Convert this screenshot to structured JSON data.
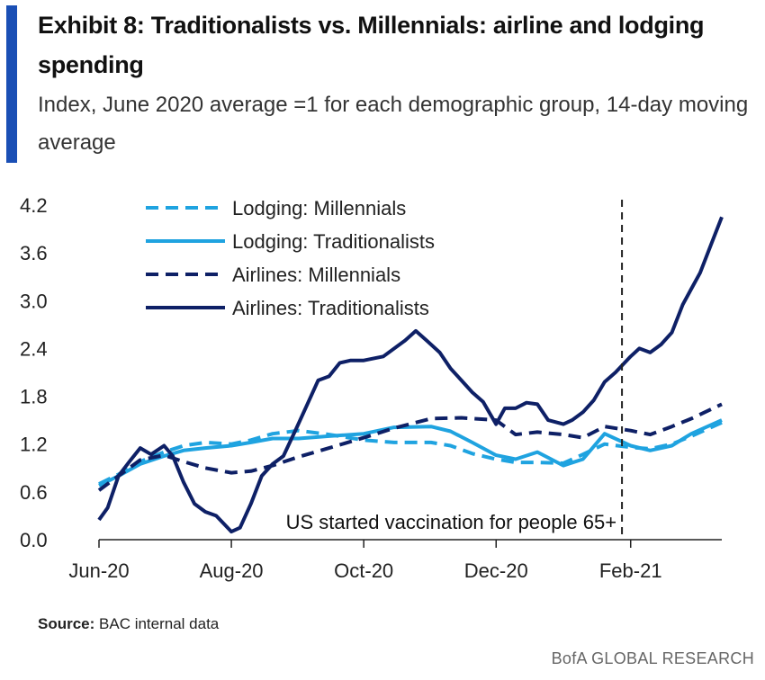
{
  "header": {
    "title": "Exhibit 8: Traditionalists vs. Millennials: airline and lodging spending",
    "subtitle": "Index, June 2020 average =1 for each demographic group, 14-day moving average"
  },
  "footer": {
    "source_label": "Source:",
    "source_text": " BAC internal data",
    "brand": "BofA GLOBAL RESEARCH"
  },
  "colors": {
    "light_blue": "#1fa3e0",
    "dark_navy": "#0e2066",
    "vline": "#222222"
  },
  "chart_data": {
    "type": "line",
    "x_tick_labels": [
      "Jun-20",
      "Aug-20",
      "Oct-20",
      "Dec-20",
      "Feb-21"
    ],
    "x_tick_dates": [
      "2020-06-01",
      "2020-08-01",
      "2020-10-01",
      "2020-12-01",
      "2021-02-01"
    ],
    "xlim": [
      "2020-06-01",
      "2021-03-15"
    ],
    "ylim": [
      0,
      4.2
    ],
    "y_ticks": [
      0.0,
      0.6,
      1.2,
      1.8,
      2.4,
      3.0,
      3.6,
      4.2
    ],
    "y_tick_labels": [
      "0.0",
      "0.6",
      "1.2",
      "1.8",
      "2.4",
      "3.0",
      "3.6",
      "4.2"
    ],
    "grid": false,
    "legend_position": "top-left",
    "annotation": {
      "text": "US started vaccination for people 65+",
      "date": "2021-01-28"
    },
    "series": [
      {
        "name": "Lodging: Millennials",
        "color": "#1fa3e0",
        "style": "dashed",
        "points": [
          [
            "2020-06-01",
            0.7
          ],
          [
            "2020-06-10",
            0.82
          ],
          [
            "2020-06-20",
            0.98
          ],
          [
            "2020-07-01",
            1.1
          ],
          [
            "2020-07-10",
            1.18
          ],
          [
            "2020-07-20",
            1.22
          ],
          [
            "2020-08-01",
            1.2
          ],
          [
            "2020-08-10",
            1.25
          ],
          [
            "2020-08-20",
            1.33
          ],
          [
            "2020-09-01",
            1.37
          ],
          [
            "2020-09-15",
            1.32
          ],
          [
            "2020-10-01",
            1.25
          ],
          [
            "2020-10-15",
            1.22
          ],
          [
            "2020-11-01",
            1.22
          ],
          [
            "2020-11-10",
            1.18
          ],
          [
            "2020-11-20",
            1.08
          ],
          [
            "2020-12-01",
            1.01
          ],
          [
            "2020-12-10",
            0.97
          ],
          [
            "2020-12-20",
            0.97
          ],
          [
            "2021-01-01",
            0.96
          ],
          [
            "2021-01-10",
            1.07
          ],
          [
            "2021-01-20",
            1.2
          ],
          [
            "2021-02-01",
            1.16
          ],
          [
            "2021-02-10",
            1.14
          ],
          [
            "2021-02-20",
            1.2
          ],
          [
            "2021-03-01",
            1.3
          ],
          [
            "2021-03-15",
            1.47
          ]
        ]
      },
      {
        "name": "Lodging: Traditionalists",
        "color": "#1fa3e0",
        "style": "solid",
        "points": [
          [
            "2020-06-01",
            0.68
          ],
          [
            "2020-06-10",
            0.8
          ],
          [
            "2020-06-20",
            0.95
          ],
          [
            "2020-07-01",
            1.05
          ],
          [
            "2020-07-10",
            1.12
          ],
          [
            "2020-07-20",
            1.15
          ],
          [
            "2020-08-01",
            1.18
          ],
          [
            "2020-08-10",
            1.22
          ],
          [
            "2020-08-20",
            1.27
          ],
          [
            "2020-09-01",
            1.27
          ],
          [
            "2020-09-15",
            1.3
          ],
          [
            "2020-10-01",
            1.33
          ],
          [
            "2020-10-15",
            1.41
          ],
          [
            "2020-11-01",
            1.42
          ],
          [
            "2020-11-10",
            1.36
          ],
          [
            "2020-11-20",
            1.22
          ],
          [
            "2020-12-01",
            1.06
          ],
          [
            "2020-12-10",
            1.01
          ],
          [
            "2020-12-20",
            1.1
          ],
          [
            "2021-01-01",
            0.93
          ],
          [
            "2021-01-10",
            1.01
          ],
          [
            "2021-01-20",
            1.33
          ],
          [
            "2021-02-01",
            1.18
          ],
          [
            "2021-02-10",
            1.12
          ],
          [
            "2021-02-20",
            1.18
          ],
          [
            "2021-03-01",
            1.33
          ],
          [
            "2021-03-15",
            1.5
          ]
        ]
      },
      {
        "name": "Airlines: Millennials",
        "color": "#0e2066",
        "style": "dashed",
        "points": [
          [
            "2020-06-01",
            0.62
          ],
          [
            "2020-06-10",
            0.8
          ],
          [
            "2020-06-20",
            1.0
          ],
          [
            "2020-07-01",
            1.06
          ],
          [
            "2020-07-10",
            0.98
          ],
          [
            "2020-07-20",
            0.9
          ],
          [
            "2020-08-01",
            0.84
          ],
          [
            "2020-08-10",
            0.86
          ],
          [
            "2020-08-20",
            0.93
          ],
          [
            "2020-09-01",
            1.04
          ],
          [
            "2020-09-15",
            1.15
          ],
          [
            "2020-10-01",
            1.28
          ],
          [
            "2020-10-15",
            1.4
          ],
          [
            "2020-11-01",
            1.52
          ],
          [
            "2020-11-15",
            1.53
          ],
          [
            "2020-12-01",
            1.5
          ],
          [
            "2020-12-10",
            1.32
          ],
          [
            "2020-12-20",
            1.35
          ],
          [
            "2021-01-01",
            1.32
          ],
          [
            "2021-01-10",
            1.28
          ],
          [
            "2021-01-20",
            1.42
          ],
          [
            "2021-02-01",
            1.37
          ],
          [
            "2021-02-10",
            1.32
          ],
          [
            "2021-02-20",
            1.42
          ],
          [
            "2021-03-01",
            1.52
          ],
          [
            "2021-03-15",
            1.7
          ]
        ]
      },
      {
        "name": "Airlines: Traditionalists",
        "color": "#0e2066",
        "style": "solid",
        "points": [
          [
            "2020-06-01",
            0.25
          ],
          [
            "2020-06-05",
            0.4
          ],
          [
            "2020-06-10",
            0.8
          ],
          [
            "2020-06-15",
            0.98
          ],
          [
            "2020-06-20",
            1.15
          ],
          [
            "2020-06-25",
            1.07
          ],
          [
            "2020-07-01",
            1.18
          ],
          [
            "2020-07-05",
            1.05
          ],
          [
            "2020-07-10",
            0.72
          ],
          [
            "2020-07-15",
            0.45
          ],
          [
            "2020-07-20",
            0.35
          ],
          [
            "2020-07-25",
            0.3
          ],
          [
            "2020-08-01",
            0.1
          ],
          [
            "2020-08-05",
            0.15
          ],
          [
            "2020-08-10",
            0.45
          ],
          [
            "2020-08-15",
            0.8
          ],
          [
            "2020-08-20",
            0.95
          ],
          [
            "2020-08-25",
            1.05
          ],
          [
            "2020-08-31",
            1.4
          ],
          [
            "2020-09-05",
            1.7
          ],
          [
            "2020-09-10",
            2.0
          ],
          [
            "2020-09-15",
            2.05
          ],
          [
            "2020-09-20",
            2.22
          ],
          [
            "2020-09-25",
            2.25
          ],
          [
            "2020-10-01",
            2.25
          ],
          [
            "2020-10-10",
            2.3
          ],
          [
            "2020-10-20",
            2.5
          ],
          [
            "2020-10-25",
            2.62
          ],
          [
            "2020-10-30",
            2.5
          ],
          [
            "2020-11-05",
            2.35
          ],
          [
            "2020-11-10",
            2.15
          ],
          [
            "2020-11-15",
            2.0
          ],
          [
            "2020-11-20",
            1.85
          ],
          [
            "2020-11-25",
            1.73
          ],
          [
            "2020-12-01",
            1.45
          ],
          [
            "2020-12-05",
            1.65
          ],
          [
            "2020-12-10",
            1.65
          ],
          [
            "2020-12-15",
            1.72
          ],
          [
            "2020-12-20",
            1.7
          ],
          [
            "2020-12-25",
            1.5
          ],
          [
            "2021-01-01",
            1.45
          ],
          [
            "2021-01-05",
            1.5
          ],
          [
            "2021-01-10",
            1.6
          ],
          [
            "2021-01-15",
            1.75
          ],
          [
            "2021-01-20",
            1.98
          ],
          [
            "2021-01-25",
            2.1
          ],
          [
            "2021-02-01",
            2.3
          ],
          [
            "2021-02-05",
            2.4
          ],
          [
            "2021-02-10",
            2.35
          ],
          [
            "2021-02-15",
            2.45
          ],
          [
            "2021-02-20",
            2.6
          ],
          [
            "2021-02-25",
            2.95
          ],
          [
            "2021-03-01",
            3.15
          ],
          [
            "2021-03-05",
            3.35
          ],
          [
            "2021-03-10",
            3.7
          ],
          [
            "2021-03-15",
            4.05
          ]
        ]
      }
    ]
  }
}
